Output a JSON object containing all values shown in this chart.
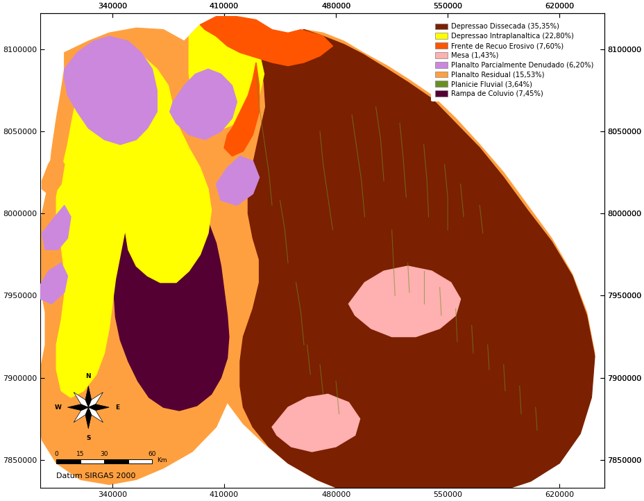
{
  "legend_entries": [
    {
      "label": "Depressao Dissecada (35,35%)",
      "color": "#7B2000"
    },
    {
      "label": "Depressao Intraplanaltica (22,80%)",
      "color": "#FFFF00"
    },
    {
      "label": "Frente de Recuo Erosivo (7,60%)",
      "color": "#FF5500"
    },
    {
      "label": "Mesa (1,43%)",
      "color": "#FFB0B0"
    },
    {
      "label": "Planalto Parcialmente Denudado (6,20%)",
      "color": "#CC88DD"
    },
    {
      "label": "Planalto Residual (15,53%)",
      "color": "#FFA040"
    },
    {
      "label": "Planicie Fluvial (3,64%)",
      "color": "#6B8E23"
    },
    {
      "label": "Rampa de Coluvio (7,45%)",
      "color": "#550033"
    }
  ],
  "x_ticks": [
    340000,
    410000,
    480000,
    550000,
    620000
  ],
  "y_ticks": [
    7850000,
    7900000,
    7950000,
    8000000,
    8050000,
    8100000
  ],
  "xlim": [
    295000,
    648000
  ],
  "ylim": [
    7833000,
    8122000
  ],
  "datum_text": "Datum SIRGAS 2000",
  "background_color": "#FFFFFF"
}
